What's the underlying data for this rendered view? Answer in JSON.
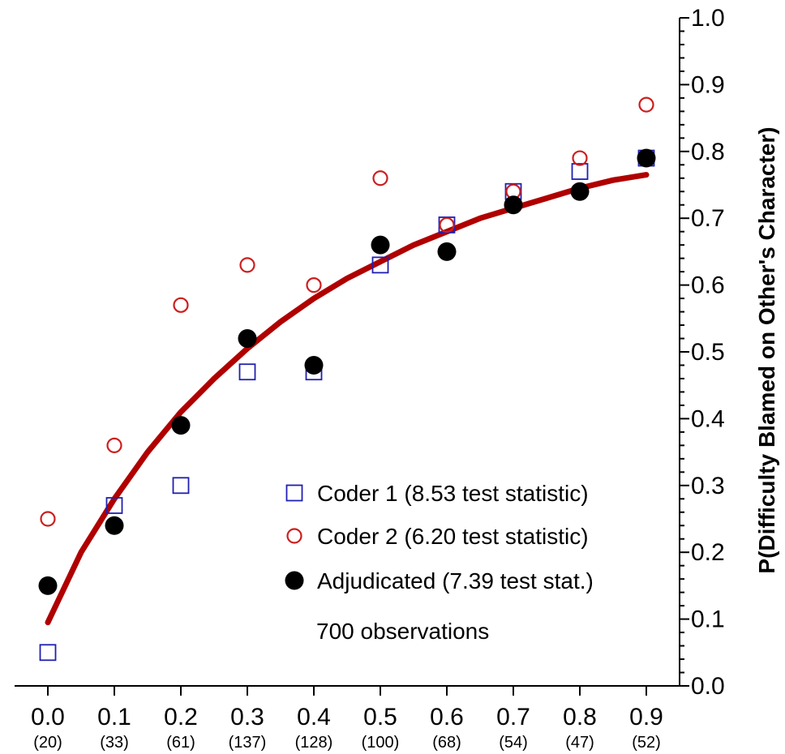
{
  "chart_data": {
    "type": "scatter",
    "title": "",
    "xlabel": "",
    "ylabel": "P(Difficulty Blamed on Other's Character)",
    "xlim": [
      -0.05,
      0.95
    ],
    "ylim": [
      0.0,
      1.0
    ],
    "x_tick_labels": [
      "0.0",
      "0.1",
      "0.2",
      "0.3",
      "0.4",
      "0.5",
      "0.6",
      "0.7",
      "0.8",
      "0.9"
    ],
    "x_counts": [
      "(20)",
      "(33)",
      "(61)",
      "(137)",
      "(128)",
      "(100)",
      "(68)",
      "(54)",
      "(47)",
      "(52)"
    ],
    "y_tick_labels": [
      "0.0",
      "0.1",
      "0.2",
      "0.3",
      "0.4",
      "0.5",
      "0.6",
      "0.7",
      "0.8",
      "0.9",
      "1.0"
    ],
    "x": [
      0.0,
      0.1,
      0.2,
      0.3,
      0.4,
      0.5,
      0.6,
      0.7,
      0.8,
      0.9
    ],
    "series": [
      {
        "name": "Coder 1 (8.53 test statistic)",
        "marker": "open-square",
        "color": "#2020b0",
        "values": [
          0.05,
          0.27,
          0.3,
          0.47,
          0.47,
          0.63,
          0.69,
          0.74,
          0.77,
          0.79
        ]
      },
      {
        "name": "Coder 2 (6.20 test statistic)",
        "marker": "open-circle",
        "color": "#cc1f1f",
        "values": [
          0.25,
          0.36,
          0.57,
          0.63,
          0.6,
          0.76,
          0.69,
          0.74,
          0.79,
          0.87
        ]
      },
      {
        "name": "Adjudicated (7.39 test stat.)",
        "marker": "filled-circle",
        "color": "#000000",
        "values": [
          0.15,
          0.24,
          0.39,
          0.52,
          0.48,
          0.66,
          0.65,
          0.72,
          0.74,
          0.79
        ]
      }
    ],
    "fit_curve": {
      "color": "#b00000",
      "x": [
        0.0,
        0.05,
        0.1,
        0.15,
        0.2,
        0.25,
        0.3,
        0.35,
        0.4,
        0.45,
        0.5,
        0.55,
        0.6,
        0.65,
        0.7,
        0.75,
        0.8,
        0.85,
        0.9
      ],
      "y": [
        0.095,
        0.2,
        0.28,
        0.35,
        0.41,
        0.46,
        0.505,
        0.545,
        0.58,
        0.61,
        0.635,
        0.66,
        0.68,
        0.7,
        0.715,
        0.73,
        0.745,
        0.757,
        0.765
      ]
    },
    "annotation": "700 observations",
    "legend_position": "bottom-right",
    "grid": false
  }
}
